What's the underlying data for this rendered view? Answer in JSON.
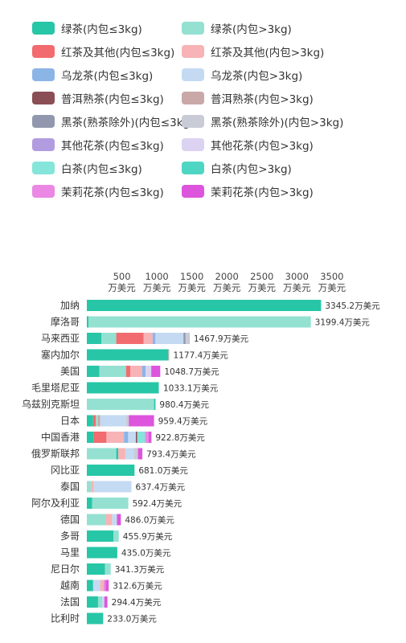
{
  "legend": [
    {
      "label": "绿茶(内包≤3kg)",
      "color": "#27c6a6"
    },
    {
      "label": "绿茶(内包>3kg)",
      "color": "#94e1d2"
    },
    {
      "label": "红茶及其他(内包≤3kg)",
      "color": "#f26b6e"
    },
    {
      "label": "红茶及其他(内包>3kg)",
      "color": "#f7b3b5"
    },
    {
      "label": "乌龙茶(内包≤3kg)",
      "color": "#8bb5e6"
    },
    {
      "label": "乌龙茶(内包>3kg)",
      "color": "#c4daf3"
    },
    {
      "label": "普洱熟茶(内包≤3kg)",
      "color": "#8a4e55"
    },
    {
      "label": "普洱熟茶(内包>3kg)",
      "color": "#c9a8a7"
    },
    {
      "label": "黑茶(熟茶除外)(内包≤3kg)",
      "color": "#9198ad"
    },
    {
      "label": "黑茶(熟茶除外)(内包>3kg)",
      "color": "#c9cbd6"
    },
    {
      "label": "其他花茶(内包≤3kg)",
      "color": "#b29ce0"
    },
    {
      "label": "其他花茶(内包>3kg)",
      "color": "#dcd2f1"
    },
    {
      "label": "白茶(内包≤3kg)",
      "color": "#85e5db"
    },
    {
      "label": "白茶(内包>3kg)",
      "color": "#4fd6c3"
    },
    {
      "label": "茉莉花茶(内包≤3kg)",
      "color": "#ea88e4"
    },
    {
      "label": "茉莉花茶(内包>3kg)",
      "color": "#dd55dc"
    }
  ],
  "chart_data": {
    "type": "bar",
    "orientation": "horizontal",
    "stacked": true,
    "x_ticks": [
      {
        "value": 500,
        "label": "500"
      },
      {
        "value": 1000,
        "label": "1000"
      },
      {
        "value": 1500,
        "label": "1500"
      },
      {
        "value": 2000,
        "label": "2000"
      },
      {
        "value": 2500,
        "label": "2500"
      },
      {
        "value": 3000,
        "label": "3000"
      },
      {
        "value": 3500,
        "label": "3500"
      }
    ],
    "x_unit": "万美元",
    "xlim": [
      0,
      3700
    ],
    "grid": false,
    "rows": [
      {
        "country": "加纳",
        "total": "3345.2万美元",
        "segments": [
          {
            "s": 0,
            "v": 3345.2
          }
        ]
      },
      {
        "country": "摩洛哥",
        "total": "3199.4万美元",
        "segments": [
          {
            "s": 0,
            "v": 25
          },
          {
            "s": 1,
            "v": 3174.4
          }
        ]
      },
      {
        "country": "马来西亚",
        "total": "1467.9万美元",
        "segments": [
          {
            "s": 0,
            "v": 210
          },
          {
            "s": 1,
            "v": 210
          },
          {
            "s": 2,
            "v": 390
          },
          {
            "s": 3,
            "v": 130
          },
          {
            "s": 4,
            "v": 40
          },
          {
            "s": 5,
            "v": 400
          },
          {
            "s": 8,
            "v": 30
          },
          {
            "s": 9,
            "v": 50
          },
          {
            "s": 4,
            "v": 7.9
          }
        ]
      },
      {
        "country": "塞内加尔",
        "total": "1177.4万美元",
        "segments": [
          {
            "s": 0,
            "v": 1165
          },
          {
            "s": 3,
            "v": 12.4
          }
        ]
      },
      {
        "country": "美国",
        "total": "1048.7万美元",
        "segments": [
          {
            "s": 0,
            "v": 180
          },
          {
            "s": 1,
            "v": 380
          },
          {
            "s": 2,
            "v": 60
          },
          {
            "s": 3,
            "v": 170
          },
          {
            "s": 4,
            "v": 50
          },
          {
            "s": 11,
            "v": 80
          },
          {
            "s": 15,
            "v": 128.7
          }
        ]
      },
      {
        "country": "毛里塔尼亚",
        "total": "1033.1万美元",
        "segments": [
          {
            "s": 0,
            "v": 1025
          },
          {
            "s": 1,
            "v": 8.1
          }
        ]
      },
      {
        "country": "乌兹别克斯坦",
        "total": "980.4万美元",
        "segments": [
          {
            "s": 1,
            "v": 960
          },
          {
            "s": 0,
            "v": 20.4
          }
        ]
      },
      {
        "country": "日本",
        "total": "959.4万美元",
        "segments": [
          {
            "s": 0,
            "v": 90
          },
          {
            "s": 2,
            "v": 40
          },
          {
            "s": 1,
            "v": 30
          },
          {
            "s": 7,
            "v": 30
          },
          {
            "s": 5,
            "v": 370
          },
          {
            "s": 9,
            "v": 40
          },
          {
            "s": 15,
            "v": 359.4
          }
        ]
      },
      {
        "country": "中国香港",
        "total": "922.8万美元",
        "segments": [
          {
            "s": 0,
            "v": 100
          },
          {
            "s": 2,
            "v": 180
          },
          {
            "s": 3,
            "v": 250
          },
          {
            "s": 4,
            "v": 60
          },
          {
            "s": 5,
            "v": 110
          },
          {
            "s": 6,
            "v": 20
          },
          {
            "s": 12,
            "v": 110
          },
          {
            "s": 14,
            "v": 50
          },
          {
            "s": 15,
            "v": 42.8
          }
        ]
      },
      {
        "country": "俄罗斯联邦",
        "total": "793.4万美元",
        "segments": [
          {
            "s": 1,
            "v": 420
          },
          {
            "s": 0,
            "v": 30
          },
          {
            "s": 3,
            "v": 100
          },
          {
            "s": 5,
            "v": 120
          },
          {
            "s": 9,
            "v": 60
          },
          {
            "s": 15,
            "v": 63.4
          }
        ]
      },
      {
        "country": "冈比亚",
        "total": "681.0万美元",
        "segments": [
          {
            "s": 0,
            "v": 681
          }
        ]
      },
      {
        "country": "泰国",
        "total": "637.4万美元",
        "segments": [
          {
            "s": 1,
            "v": 60
          },
          {
            "s": 3,
            "v": 40
          },
          {
            "s": 5,
            "v": 537.4
          }
        ]
      },
      {
        "country": "阿尔及利亚",
        "total": "592.4万美元",
        "segments": [
          {
            "s": 0,
            "v": 75
          },
          {
            "s": 1,
            "v": 517.4
          }
        ]
      },
      {
        "country": "德国",
        "total": "486.0万美元",
        "segments": [
          {
            "s": 1,
            "v": 270
          },
          {
            "s": 3,
            "v": 90
          },
          {
            "s": 5,
            "v": 70
          },
          {
            "s": 15,
            "v": 56
          }
        ]
      },
      {
        "country": "多哥",
        "total": "455.9万美元",
        "segments": [
          {
            "s": 0,
            "v": 380
          },
          {
            "s": 1,
            "v": 75.9
          }
        ]
      },
      {
        "country": "马里",
        "total": "435.0万美元",
        "segments": [
          {
            "s": 0,
            "v": 435
          }
        ]
      },
      {
        "country": "尼日尔",
        "total": "341.3万美元",
        "segments": [
          {
            "s": 0,
            "v": 260
          },
          {
            "s": 1,
            "v": 81.3
          }
        ]
      },
      {
        "country": "越南",
        "total": "312.6万美元",
        "segments": [
          {
            "s": 0,
            "v": 90
          },
          {
            "s": 5,
            "v": 100
          },
          {
            "s": 3,
            "v": 50
          },
          {
            "s": 14,
            "v": 30
          },
          {
            "s": 15,
            "v": 42.6
          }
        ]
      },
      {
        "country": "法国",
        "total": "294.4万美元",
        "segments": [
          {
            "s": 0,
            "v": 160
          },
          {
            "s": 1,
            "v": 60
          },
          {
            "s": 5,
            "v": 30
          },
          {
            "s": 15,
            "v": 44.4
          }
        ]
      },
      {
        "country": "比利时",
        "total": "233.0万美元",
        "segments": [
          {
            "s": 0,
            "v": 233
          }
        ]
      }
    ]
  }
}
